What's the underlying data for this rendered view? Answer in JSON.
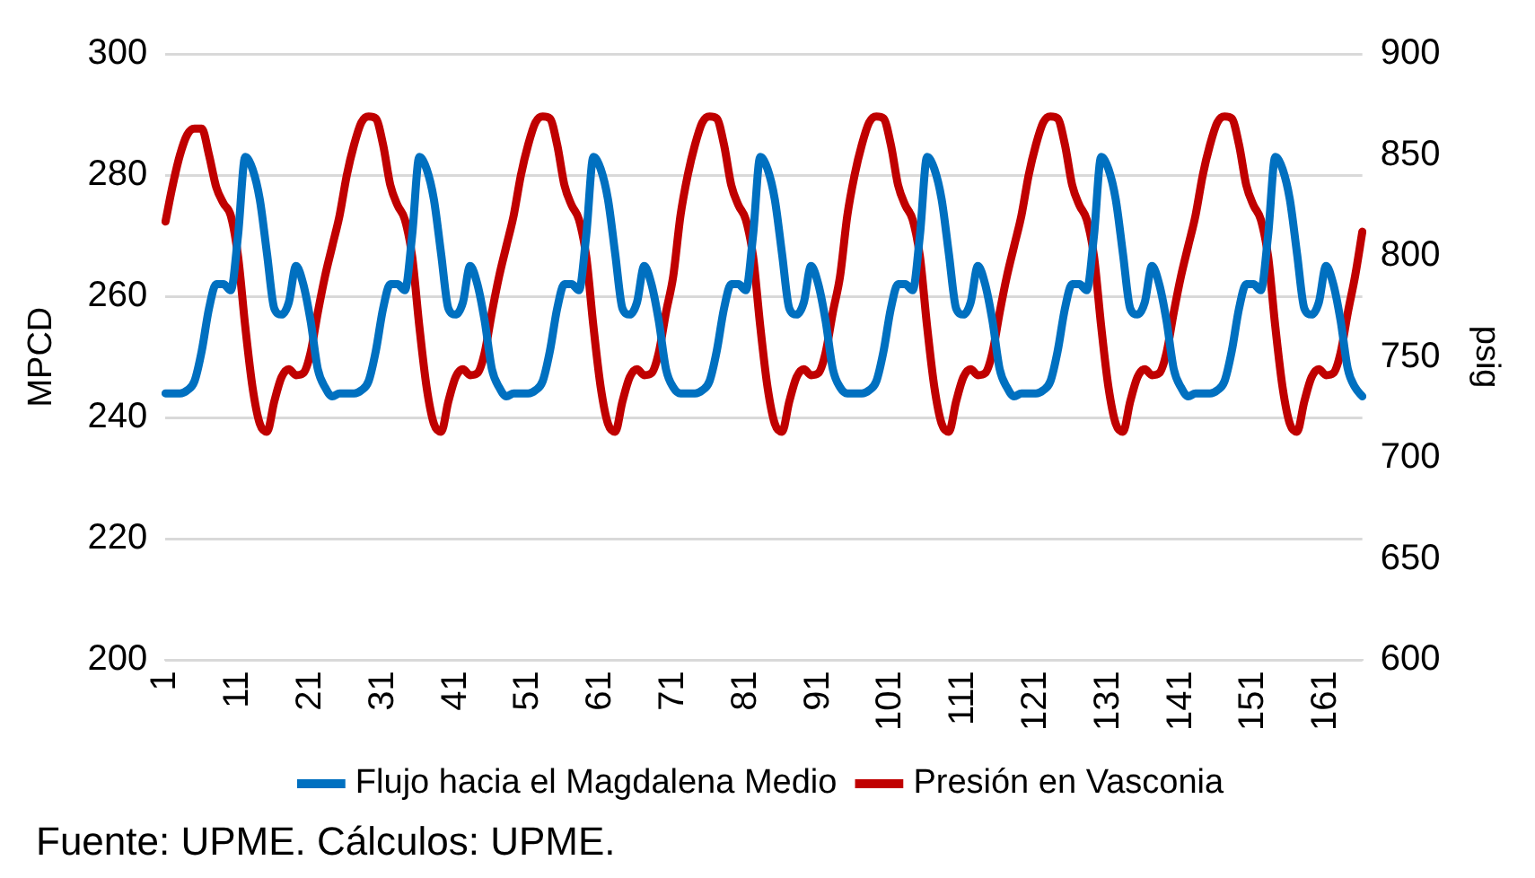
{
  "chart_data": {
    "type": "line",
    "ylabel": "MPCD",
    "y2label": "psig",
    "annotations": [
      "Fuente: UPME. Cálculos: UPME."
    ],
    "categories": [
      "1",
      null,
      null,
      null,
      null,
      null,
      null,
      null,
      null,
      null,
      "11",
      null,
      null,
      null,
      null,
      null,
      null,
      null,
      null,
      null,
      "21",
      null,
      null,
      null,
      null,
      null,
      null,
      null,
      null,
      null,
      "31",
      null,
      null,
      null,
      null,
      null,
      null,
      null,
      null,
      null,
      "41",
      null,
      null,
      null,
      null,
      null,
      null,
      null,
      null,
      null,
      "51",
      null,
      null,
      null,
      null,
      null,
      null,
      null,
      null,
      null,
      "61",
      null,
      null,
      null,
      null,
      null,
      null,
      null,
      null,
      null,
      "71",
      null,
      null,
      null,
      null,
      null,
      null,
      null,
      null,
      null,
      "81",
      null,
      null,
      null,
      null,
      null,
      null,
      null,
      null,
      null,
      "91",
      null,
      null,
      null,
      null,
      null,
      null,
      null,
      null,
      null,
      "101",
      null,
      null,
      null,
      null,
      null,
      null,
      null,
      null,
      null,
      "111",
      null,
      null,
      null,
      null,
      null,
      null,
      null,
      null,
      null,
      "121",
      null,
      null,
      null,
      null,
      null,
      null,
      null,
      null,
      null,
      "131",
      null,
      null,
      null,
      null,
      null,
      null,
      null,
      null,
      null,
      "141",
      null,
      null,
      null,
      null,
      null,
      null,
      null,
      null,
      null,
      "151",
      null,
      null,
      null,
      null,
      null,
      null,
      null,
      null,
      null,
      "161",
      null,
      null,
      null,
      null,
      null
    ],
    "series": [
      {
        "name": "Flujo hacia el Magdalena Medio",
        "color": "#0070c0",
        "values": [
          244,
          244,
          244,
          244.5,
          246,
          251,
          258,
          262,
          262,
          261,
          270,
          283,
          281,
          276,
          267,
          258,
          257,
          259,
          265,
          262,
          256,
          248,
          245,
          243.5,
          244,
          244,
          244,
          244.5,
          246,
          251,
          258,
          262,
          262,
          261,
          270,
          283,
          281,
          276,
          267,
          258,
          257,
          259,
          265,
          262,
          256,
          248,
          245,
          243.5,
          244,
          244,
          244,
          244.5,
          246,
          251,
          258,
          262,
          262,
          261,
          270,
          283,
          281,
          276,
          267,
          258,
          257,
          259,
          265,
          262,
          256,
          248,
          245,
          244,
          244,
          244,
          244.5,
          246,
          251,
          258,
          262,
          262,
          261,
          270,
          283,
          281,
          276,
          267,
          258,
          257,
          259,
          265,
          262,
          256,
          248,
          245,
          244,
          244,
          244,
          244.5,
          246,
          251,
          258,
          262,
          262,
          261,
          270,
          283,
          281,
          276,
          267,
          258,
          257,
          259,
          265,
          262,
          256,
          248,
          245,
          243.5,
          244,
          244,
          244,
          244.5,
          246,
          251,
          258,
          262,
          262,
          261,
          270,
          283,
          281,
          276,
          267,
          258,
          257,
          259,
          265,
          262,
          256,
          248,
          245,
          243.5,
          244,
          244,
          244,
          244.5,
          246,
          251,
          258,
          262,
          262,
          261,
          270,
          283,
          281,
          276,
          267,
          258,
          257,
          259,
          265,
          262,
          256,
          248,
          245,
          243.5
        ]
      },
      {
        "name": "Presión en Vasconia",
        "color": "#c00000",
        "axis": "y2",
        "values": [
          817,
          835,
          850,
          860,
          863,
          863,
          850,
          834,
          826,
          820,
          800,
          765,
          735,
          717,
          713,
          728,
          740,
          744,
          741,
          742,
          752,
          772,
          790,
          805,
          820,
          840,
          855,
          866,
          869,
          868,
          855,
          835,
          825,
          818,
          800,
          765,
          735,
          717,
          713,
          728,
          740,
          744,
          741,
          742,
          752,
          772,
          790,
          805,
          820,
          840,
          855,
          866,
          869,
          868,
          855,
          835,
          825,
          818,
          800,
          765,
          735,
          717,
          713,
          728,
          740,
          744,
          741,
          742,
          752,
          772,
          790,
          820,
          840,
          855,
          866,
          869,
          868,
          855,
          835,
          825,
          818,
          800,
          765,
          735,
          717,
          713,
          728,
          740,
          744,
          741,
          742,
          752,
          772,
          790,
          820,
          840,
          855,
          866,
          869,
          868,
          855,
          835,
          825,
          818,
          800,
          765,
          735,
          717,
          713,
          728,
          740,
          744,
          741,
          742,
          752,
          772,
          790,
          805,
          820,
          840,
          855,
          866,
          869,
          868,
          855,
          835,
          825,
          818,
          800,
          765,
          735,
          717,
          713,
          728,
          740,
          744,
          741,
          742,
          752,
          772,
          790,
          805,
          820,
          840,
          855,
          866,
          869,
          868,
          855,
          835,
          825,
          818,
          800,
          765,
          735,
          717,
          713,
          728,
          740,
          744,
          741,
          742,
          752,
          772,
          790,
          812
        ]
      }
    ],
    "ylim": [
      200,
      300
    ],
    "yticks": [
      200,
      220,
      240,
      260,
      280,
      300
    ],
    "y2lim": [
      600,
      900
    ],
    "y2ticks": [
      600,
      650,
      700,
      750,
      800,
      850,
      900
    ],
    "grid": "y",
    "legend": "bottom",
    "marker": "none",
    "line_style": "solid"
  }
}
